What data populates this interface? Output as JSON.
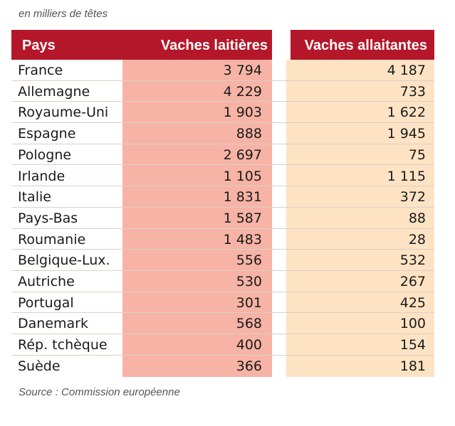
{
  "subtitle": "en milliers de têtes",
  "source": "Source : Commission européenne",
  "colors": {
    "header_bg": "#b5172a",
    "col_laitieres_bg": "#f7b3a5",
    "col_allaitantes_bg": "#fde3c4"
  },
  "chart_data": {
    "type": "table",
    "columns": [
      "Pays",
      "Vaches laitières",
      "Vaches allaitantes"
    ],
    "unit": "en milliers de têtes",
    "rows": [
      {
        "pays": "France",
        "laitieres": "3 794",
        "allaitantes": "4 187"
      },
      {
        "pays": "Allemagne",
        "laitieres": "4 229",
        "allaitantes": "733"
      },
      {
        "pays": "Royaume-Uni",
        "laitieres": "1 903",
        "allaitantes": "1 622"
      },
      {
        "pays": "Espagne",
        "laitieres": "888",
        "allaitantes": "1 945"
      },
      {
        "pays": "Pologne",
        "laitieres": "2 697",
        "allaitantes": "75"
      },
      {
        "pays": "Irlande",
        "laitieres": "1 105",
        "allaitantes": "1 115"
      },
      {
        "pays": "Italie",
        "laitieres": "1 831",
        "allaitantes": "372"
      },
      {
        "pays": "Pays-Bas",
        "laitieres": "1 587",
        "allaitantes": "88"
      },
      {
        "pays": "Roumanie",
        "laitieres": "1 483",
        "allaitantes": "28"
      },
      {
        "pays": "Belgique-Lux.",
        "laitieres": "556",
        "allaitantes": "532"
      },
      {
        "pays": "Autriche",
        "laitieres": "530",
        "allaitantes": "267"
      },
      {
        "pays": "Portugal",
        "laitieres": "301",
        "allaitantes": "425"
      },
      {
        "pays": "Danemark",
        "laitieres": "568",
        "allaitantes": "100"
      },
      {
        "pays": "Rép. tchèque",
        "laitieres": "400",
        "allaitantes": "154"
      },
      {
        "pays": "Suède",
        "laitieres": "366",
        "allaitantes": "181"
      }
    ]
  }
}
